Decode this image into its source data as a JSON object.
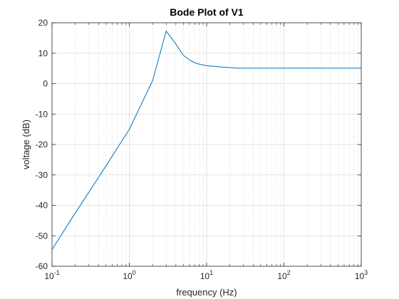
{
  "chart_data": {
    "type": "line",
    "title": "Bode Plot of V1",
    "xlabel": "frequency (Hz)",
    "ylabel": "voltage (dB)",
    "xscale": "log",
    "xlim": [
      0.1,
      1000
    ],
    "ylim": [
      -60,
      20
    ],
    "grid": true,
    "minor_grid": true,
    "line_color": "#0072BD",
    "x_ticks": [
      {
        "value": 0.1,
        "base": "10",
        "exp": "-1"
      },
      {
        "value": 1,
        "base": "10",
        "exp": "0"
      },
      {
        "value": 10,
        "base": "10",
        "exp": "1"
      },
      {
        "value": 100,
        "base": "10",
        "exp": "2"
      },
      {
        "value": 1000,
        "base": "10",
        "exp": "3"
      }
    ],
    "y_ticks": [
      -60,
      -50,
      -40,
      -30,
      -20,
      -10,
      0,
      10,
      20
    ],
    "series": [
      {
        "x": [
          0.1,
          0.2,
          0.5,
          1,
          2,
          3,
          4,
          5,
          6,
          7,
          8,
          10,
          15,
          20,
          25,
          30,
          50,
          100,
          200,
          500,
          1000
        ],
        "y": [
          -54.5,
          -42.5,
          -27,
          -15,
          1,
          17.3,
          13,
          9.3,
          7.8,
          6.9,
          6.4,
          5.9,
          5.5,
          5.3,
          5.1,
          5.1,
          5.1,
          5.1,
          5.1,
          5.1,
          5.1
        ]
      }
    ]
  }
}
